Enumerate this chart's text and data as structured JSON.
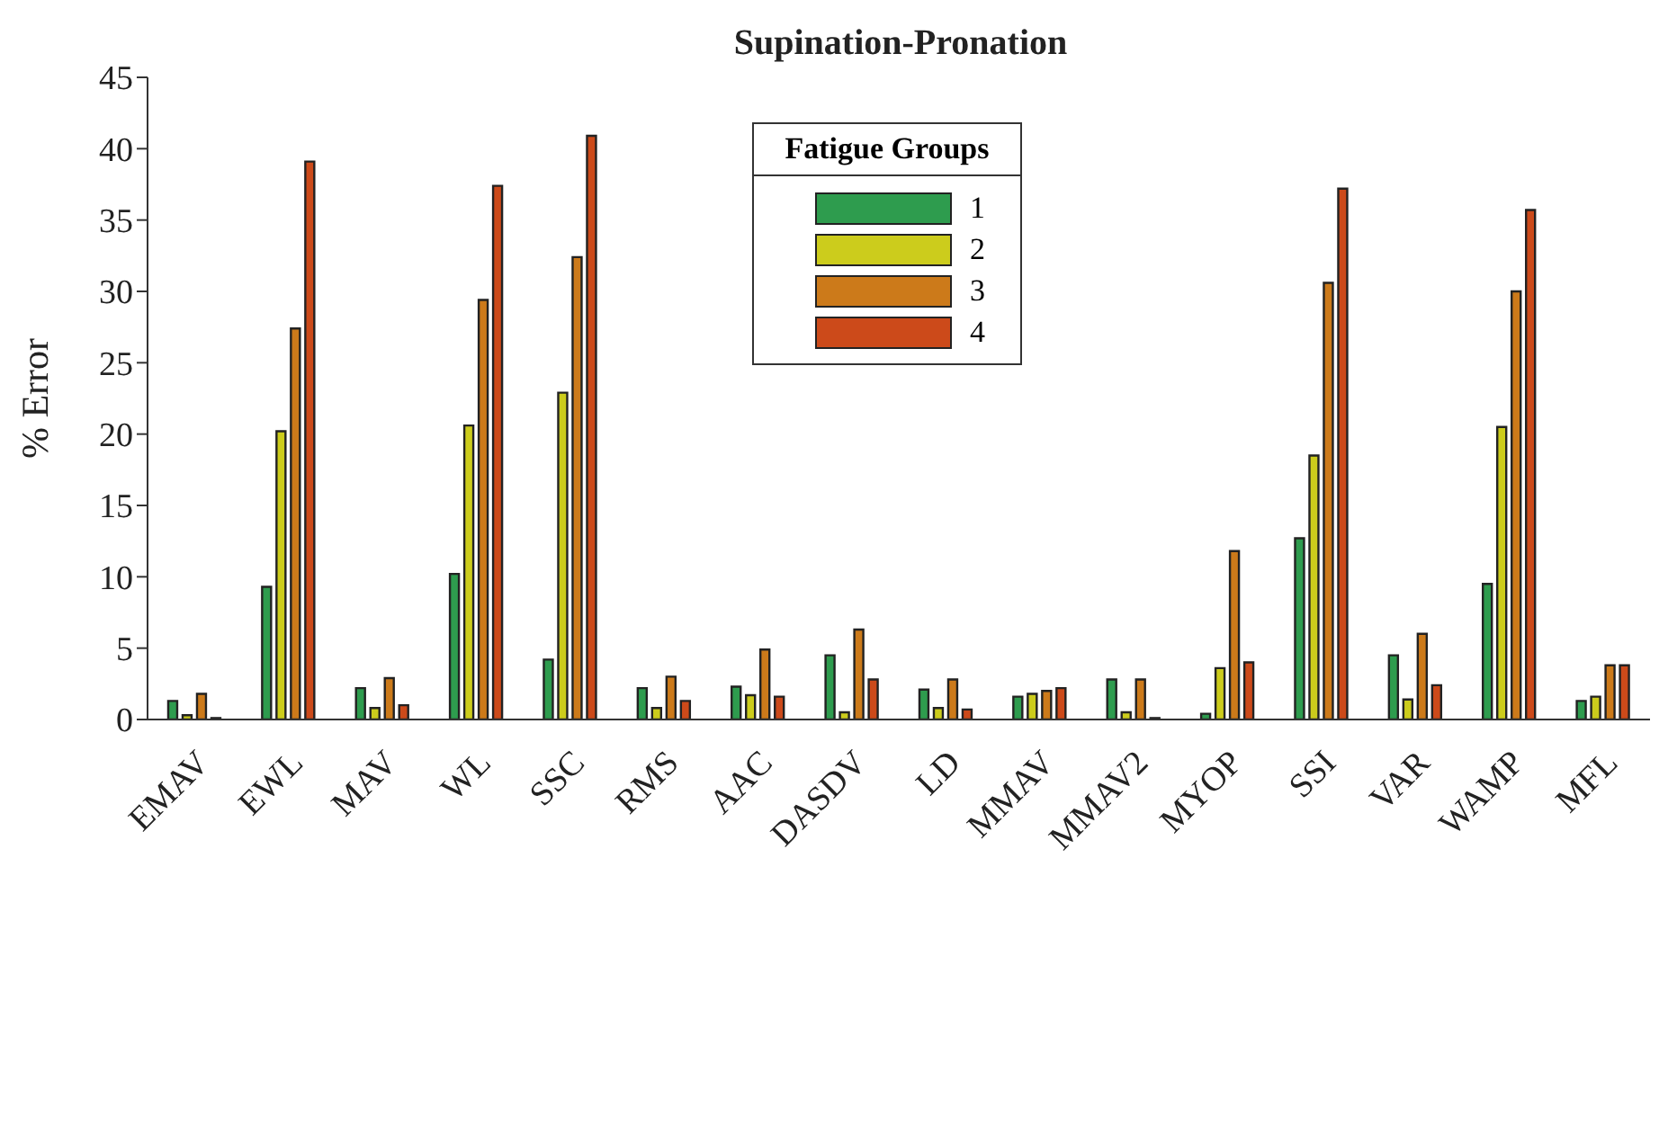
{
  "chart_data": {
    "type": "bar",
    "title": "Supination-Pronation",
    "ylabel": "% Error",
    "legend_title": "Fatigue Groups",
    "categories": [
      "EMAV",
      "EWL",
      "MAV",
      "WL",
      "SSC",
      "RMS",
      "AAC",
      "DASDV",
      "LD",
      "MMAV",
      "MMAV2",
      "MYOP",
      "SSI",
      "VAR",
      "WAMP",
      "MFL"
    ],
    "series": [
      {
        "name": "1",
        "color": "#2e9c4e",
        "values": [
          1.3,
          9.3,
          2.2,
          10.2,
          4.2,
          2.2,
          2.3,
          4.5,
          2.1,
          1.6,
          2.8,
          0.4,
          12.7,
          4.5,
          9.5,
          1.3
        ]
      },
      {
        "name": "2",
        "color": "#cccc1c",
        "values": [
          0.3,
          20.2,
          0.8,
          20.6,
          22.9,
          0.8,
          1.7,
          0.5,
          0.8,
          1.8,
          0.5,
          3.6,
          18.5,
          1.4,
          20.5,
          1.6
        ]
      },
      {
        "name": "3",
        "color": "#cc7a1a",
        "values": [
          1.8,
          27.4,
          2.9,
          29.4,
          32.4,
          3.0,
          4.9,
          6.3,
          2.8,
          2.0,
          2.8,
          11.8,
          30.6,
          6.0,
          30.0,
          3.8
        ]
      },
      {
        "name": "4",
        "color": "#cc4a1a",
        "values": [
          0.1,
          39.1,
          1.0,
          37.4,
          40.9,
          1.3,
          1.6,
          2.8,
          0.7,
          2.2,
          0.1,
          4.0,
          37.2,
          2.4,
          35.7,
          3.8
        ]
      }
    ],
    "ylim": [
      0,
      45
    ],
    "yticks": [
      0,
      5,
      10,
      15,
      20,
      25,
      30,
      35,
      40,
      45
    ],
    "grid": false,
    "legend": "top"
  }
}
